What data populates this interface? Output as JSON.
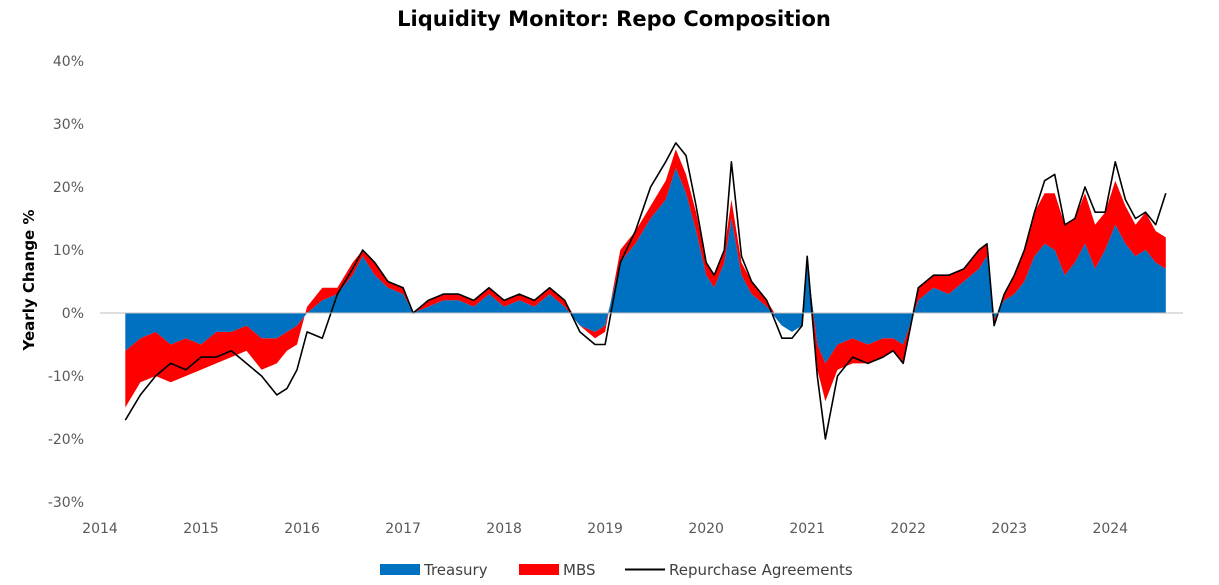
{
  "chart_data": {
    "type": "area",
    "title": "Liquidity Monitor: Repo Composition",
    "xlabel": "",
    "ylabel": "Yearly Change %",
    "ylim": [
      -30,
      40
    ],
    "y_ticks": [
      "40%",
      "30%",
      "20%",
      "10%",
      "0%",
      "-10%",
      "-20%",
      "-30%"
    ],
    "y_tick_values": [
      40,
      30,
      20,
      10,
      0,
      -10,
      -20,
      -30
    ],
    "xlim": [
      2014,
      2024.72
    ],
    "x_ticks": [
      "2014",
      "2015",
      "2016",
      "2017",
      "2018",
      "2019",
      "2020",
      "2021",
      "2022",
      "2023",
      "2024"
    ],
    "x_tick_values": [
      2014,
      2015,
      2016,
      2017,
      2018,
      2019,
      2020,
      2021,
      2022,
      2023,
      2024
    ],
    "grid": false,
    "legend": "bottom",
    "colors": {
      "treasury": "#0070c0",
      "mbs": "#ff0000",
      "repo": "#000000"
    },
    "x": [
      2014.25,
      2014.4,
      2014.55,
      2014.7,
      2014.85,
      2015.0,
      2015.15,
      2015.3,
      2015.45,
      2015.6,
      2015.75,
      2015.85,
      2015.95,
      2016.05,
      2016.2,
      2016.35,
      2016.5,
      2016.6,
      2016.72,
      2016.85,
      2017.0,
      2017.1,
      2017.25,
      2017.4,
      2017.55,
      2017.7,
      2017.85,
      2018.0,
      2018.15,
      2018.3,
      2018.45,
      2018.6,
      2018.75,
      2018.9,
      2019.0,
      2019.15,
      2019.3,
      2019.45,
      2019.6,
      2019.7,
      2019.8,
      2019.9,
      2020.0,
      2020.08,
      2020.18,
      2020.25,
      2020.35,
      2020.45,
      2020.6,
      2020.75,
      2020.85,
      2020.95,
      2021.0,
      2021.1,
      2021.18,
      2021.3,
      2021.45,
      2021.6,
      2021.75,
      2021.85,
      2021.95,
      2022.1,
      2022.25,
      2022.4,
      2022.55,
      2022.7,
      2022.78,
      2022.85,
      2022.95,
      2023.05,
      2023.15,
      2023.25,
      2023.35,
      2023.45,
      2023.55,
      2023.65,
      2023.75,
      2023.85,
      2023.95,
      2024.05,
      2024.15,
      2024.25,
      2024.35,
      2024.45,
      2024.55
    ],
    "series": [
      {
        "name": "Treasury",
        "type": "area",
        "values": [
          -6,
          -4,
          -3,
          -5,
          -4,
          -5,
          -3,
          -3,
          -2,
          -4,
          -4,
          -3,
          -2,
          0,
          2,
          3,
          6,
          9,
          6,
          4,
          3,
          0,
          1,
          2,
          2,
          1,
          3,
          1,
          2,
          1,
          3,
          1,
          -2,
          -3,
          -2,
          8,
          11,
          15,
          18,
          23,
          19,
          13,
          6,
          4,
          8,
          15,
          6,
          3,
          1,
          -2,
          -3,
          -2,
          8,
          -5,
          -8,
          -5,
          -4,
          -5,
          -4,
          -4,
          -5,
          2,
          4,
          3,
          5,
          7,
          9,
          -1,
          2,
          3,
          5,
          9,
          11,
          10,
          6,
          8,
          11,
          7,
          10,
          14,
          11,
          9,
          10,
          8,
          7
        ]
      },
      {
        "name": "MBS",
        "type": "area",
        "values": [
          -9,
          -7,
          -7,
          -6,
          -6,
          -4,
          -5,
          -4,
          -4,
          -5,
          -4,
          -3,
          -3,
          1,
          2,
          1,
          2,
          1,
          2,
          1,
          1,
          0,
          1,
          1,
          1,
          1,
          1,
          1,
          1,
          1,
          1,
          1,
          0,
          -1,
          -1,
          2,
          2,
          2,
          3,
          3,
          3,
          3,
          2,
          2,
          2,
          3,
          2,
          2,
          1,
          0,
          0,
          0,
          1,
          -4,
          -6,
          -4,
          -4,
          -3,
          -3,
          -2,
          -3,
          2,
          2,
          3,
          2,
          3,
          2,
          -1,
          1,
          3,
          5,
          7,
          8,
          9,
          8,
          7,
          8,
          7,
          6,
          7,
          6,
          5,
          6,
          5,
          5
        ]
      },
      {
        "name": "Repurchase Agreements",
        "type": "line",
        "values": [
          -17,
          -13,
          -10,
          -8,
          -9,
          -7,
          -7,
          -6,
          -8,
          -10,
          -13,
          -12,
          -9,
          -3,
          -4,
          3,
          7,
          10,
          8,
          5,
          4,
          0,
          2,
          3,
          3,
          2,
          4,
          2,
          3,
          2,
          4,
          2,
          -3,
          -5,
          -5,
          8,
          13,
          20,
          24,
          27,
          25,
          17,
          8,
          6,
          10,
          24,
          9,
          5,
          2,
          -4,
          -4,
          -2,
          9,
          -10,
          -20,
          -10,
          -7,
          -8,
          -7,
          -6,
          -8,
          4,
          6,
          6,
          7,
          10,
          11,
          -2,
          3,
          6,
          10,
          16,
          21,
          22,
          14,
          15,
          20,
          16,
          16,
          24,
          18,
          15,
          16,
          14,
          19
        ]
      }
    ]
  },
  "legend": {
    "treasury_label": "Treasury",
    "mbs_label": "MBS",
    "repo_label": "Repurchase Agreements"
  }
}
